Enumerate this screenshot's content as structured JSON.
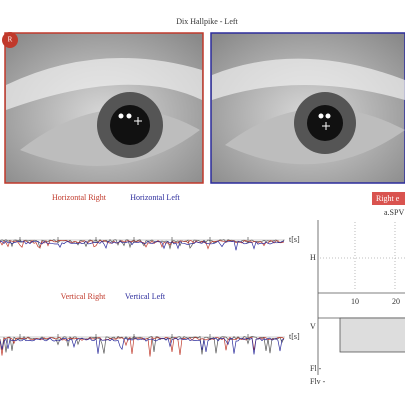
{
  "header": {
    "title": "Dix Hallpike - Left"
  },
  "left_video": {
    "badge": "R"
  },
  "horizontal": {
    "right_label": "Horizontal Right",
    "left_label": "Horizontal Left",
    "axis_label": "t[s]"
  },
  "vertical": {
    "right_label": "Vertical Right",
    "left_label": "Vertical Left",
    "axis_label": "t[s]"
  },
  "right_panel": {
    "button": "Right e",
    "label": "a.SPV",
    "h_label": "H",
    "v_label": "V",
    "x_ticks": [
      "10",
      "20"
    ],
    "rows": [
      "Fl -",
      "Flv -"
    ]
  }
}
